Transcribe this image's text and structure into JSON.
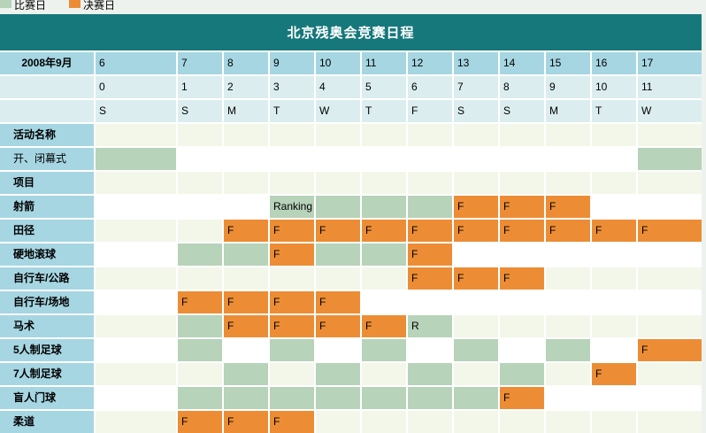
{
  "title": "北京残奥会竞赛日程",
  "legend": {
    "items": [
      {
        "label": "比赛日",
        "key": "competition-day",
        "color": "#b7d3ba"
      },
      {
        "label": "决赛日",
        "key": "final-day",
        "color": "#ec8d35"
      }
    ]
  },
  "colors": {
    "title_bar": "#17787b",
    "header_day_row": "#a6d6e2",
    "header_sub_rows": "#dbedef",
    "competition_day": "#b7d3ba",
    "final_day": "#ec8d35",
    "alt_row": "#f3f7ea",
    "page_bg": "#eef2ee"
  },
  "header": {
    "month": "2008年9月",
    "dates": [
      "6",
      "7",
      "8",
      "9",
      "10",
      "11",
      "12",
      "13",
      "14",
      "15",
      "16",
      "17"
    ],
    "day_numbers": [
      "0",
      "1",
      "2",
      "3",
      "4",
      "5",
      "6",
      "7",
      "8",
      "9",
      "10",
      "11"
    ],
    "weekdays": [
      "S",
      "S",
      "M",
      "T",
      "W",
      "T",
      "F",
      "S",
      "S",
      "M",
      "T",
      "W"
    ]
  },
  "rows": [
    {
      "label": "活动名称",
      "bold": true,
      "cells": [
        "none",
        "none",
        "none",
        "none",
        "none",
        "none",
        "none",
        "none",
        "none",
        "none",
        "none",
        "none"
      ]
    },
    {
      "label": "开、闭幕式",
      "bold": false,
      "cells": [
        "comp",
        "none",
        "none",
        "none",
        "none",
        "none",
        "none",
        "none",
        "none",
        "none",
        "none",
        "comp"
      ]
    },
    {
      "label": "项目",
      "bold": true,
      "cells": [
        "none",
        "none",
        "none",
        "none",
        "none",
        "none",
        "none",
        "none",
        "none",
        "none",
        "none",
        "none"
      ]
    },
    {
      "label": "射箭",
      "bold": true,
      "cells": [
        "none",
        "none",
        "none",
        "comp:Ranking",
        "comp",
        "comp",
        "comp",
        "final:F",
        "final:F",
        "final:F",
        "none",
        "none"
      ]
    },
    {
      "label": "田径",
      "bold": true,
      "cells": [
        "none",
        "none",
        "final:F",
        "final:F",
        "final:F",
        "final:F",
        "final:F",
        "final:F",
        "final:F",
        "final:F",
        "final:F",
        "final:F"
      ]
    },
    {
      "label": "硬地滚球",
      "bold": true,
      "cells": [
        "none",
        "comp",
        "comp",
        "final:F",
        "comp",
        "comp",
        "final:F",
        "none",
        "none",
        "none",
        "none",
        "none"
      ]
    },
    {
      "label": "自行车/公路",
      "bold": true,
      "cells": [
        "none",
        "none",
        "none",
        "none",
        "none",
        "none",
        "final:F",
        "final:F",
        "final:F",
        "none",
        "none",
        "none"
      ]
    },
    {
      "label": "自行车/场地",
      "bold": true,
      "cells": [
        "none",
        "final:F",
        "final:F",
        "final:F",
        "final:F",
        "none",
        "none",
        "none",
        "none",
        "none",
        "none",
        "none"
      ]
    },
    {
      "label": "马术",
      "bold": true,
      "cells": [
        "none",
        "comp",
        "final:F",
        "final:F",
        "final:F",
        "final:F",
        "comp:R",
        "none",
        "none",
        "none",
        "none",
        "none"
      ]
    },
    {
      "label": "5人制足球",
      "bold": true,
      "cells": [
        "none",
        "comp",
        "none",
        "comp",
        "none",
        "comp",
        "none",
        "comp",
        "none",
        "comp",
        "none",
        "final:F"
      ]
    },
    {
      "label": "7人制足球",
      "bold": true,
      "cells": [
        "none",
        "none",
        "comp",
        "none",
        "comp",
        "none",
        "comp",
        "none",
        "comp",
        "none",
        "final:F",
        "none"
      ]
    },
    {
      "label": "盲人门球",
      "bold": true,
      "cells": [
        "none",
        "comp",
        "comp",
        "comp",
        "comp",
        "comp",
        "comp",
        "comp",
        "final:F",
        "none",
        "none",
        "none"
      ]
    },
    {
      "label": "柔道",
      "bold": true,
      "cells": [
        "none",
        "final:F",
        "final:F",
        "final:F",
        "none",
        "none",
        "none",
        "none",
        "none",
        "none",
        "none",
        "none"
      ]
    }
  ]
}
